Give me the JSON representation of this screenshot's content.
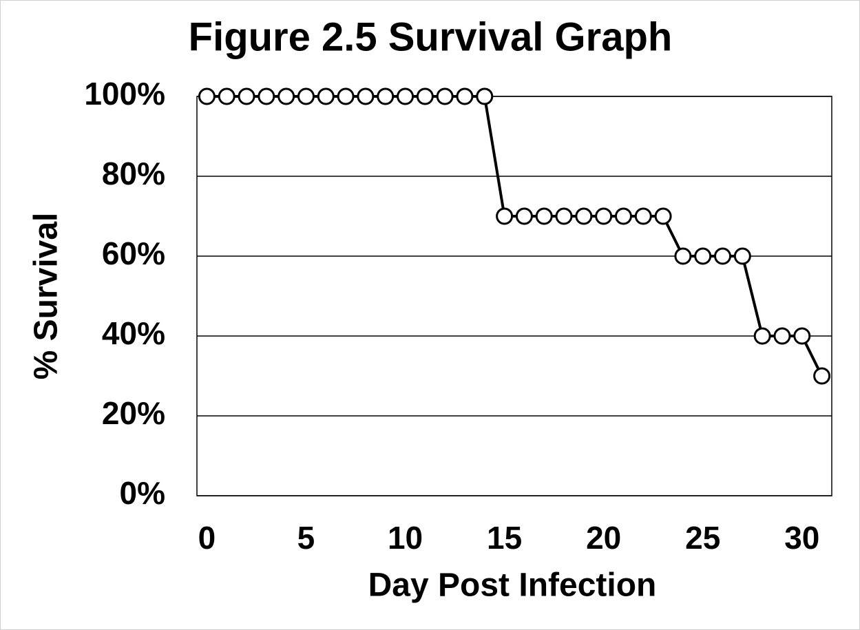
{
  "chart_data": {
    "type": "line",
    "title": "Figure 2.5 Survival Graph",
    "x_label": "Day Post Infection",
    "y_label": "% Survival",
    "x": [
      0,
      1,
      2,
      3,
      4,
      5,
      6,
      7,
      8,
      9,
      10,
      11,
      12,
      13,
      14,
      15,
      16,
      17,
      18,
      19,
      20,
      21,
      22,
      23,
      24,
      25,
      26,
      27,
      28,
      29,
      30,
      31
    ],
    "series": [
      {
        "color": "#000000",
        "values": [
          100,
          100,
          100,
          100,
          100,
          100,
          100,
          100,
          100,
          100,
          100,
          100,
          100,
          100,
          100,
          70,
          70,
          70,
          70,
          70,
          70,
          70,
          70,
          70,
          60,
          60,
          60,
          60,
          40,
          40,
          40,
          30
        ]
      }
    ],
    "xlim": [
      -0.5,
      31.5
    ],
    "xticks": [
      0,
      5,
      10,
      15,
      20,
      25,
      30
    ],
    "ylim": [
      0,
      100
    ],
    "yticks": [
      {
        "value": 0,
        "label": "0%"
      },
      {
        "value": 20,
        "label": "20%"
      },
      {
        "value": 40,
        "label": "40%"
      },
      {
        "value": 60,
        "label": "60%"
      },
      {
        "value": 80,
        "label": "80%"
      },
      {
        "value": 100,
        "label": "100%"
      }
    ],
    "grid": true
  }
}
